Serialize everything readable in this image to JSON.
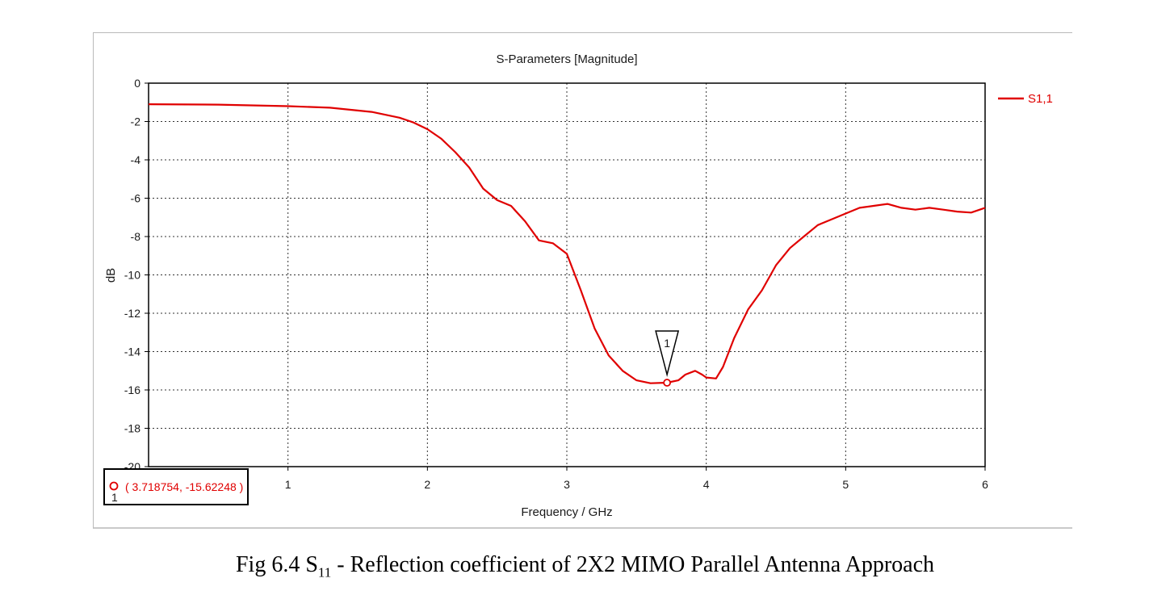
{
  "chart_data": {
    "type": "line",
    "title": "S-Parameters [Magnitude]",
    "xlabel": "Frequency / GHz",
    "ylabel": "dB",
    "xlim": [
      0,
      6
    ],
    "ylim": [
      -20,
      0
    ],
    "x_ticks": [
      1,
      2,
      3,
      4,
      5,
      6
    ],
    "y_ticks": [
      0,
      -2,
      -4,
      -6,
      -8,
      -10,
      -12,
      -14,
      -16,
      -18,
      -20
    ],
    "grid": true,
    "legend": "top-right",
    "series": [
      {
        "name": "S1,1",
        "color": "#e00000",
        "x": [
          0,
          0.5,
          1.0,
          1.3,
          1.6,
          1.8,
          1.9,
          2.0,
          2.1,
          2.2,
          2.3,
          2.4,
          2.5,
          2.6,
          2.7,
          2.8,
          2.9,
          3.0,
          3.1,
          3.2,
          3.3,
          3.4,
          3.5,
          3.6,
          3.7187,
          3.8,
          3.85,
          3.92,
          3.97,
          4.0,
          4.07,
          4.12,
          4.2,
          4.3,
          4.4,
          4.5,
          4.6,
          4.7,
          4.8,
          4.9,
          5.0,
          5.1,
          5.2,
          5.3,
          5.4,
          5.5,
          5.6,
          5.7,
          5.8,
          5.9,
          6.0
        ],
        "y": [
          -1.1,
          -1.12,
          -1.2,
          -1.28,
          -1.5,
          -1.8,
          -2.05,
          -2.4,
          -2.9,
          -3.6,
          -4.4,
          -5.5,
          -6.1,
          -6.4,
          -7.2,
          -8.2,
          -8.35,
          -8.9,
          -10.8,
          -12.8,
          -14.2,
          -15.0,
          -15.5,
          -15.65,
          -15.62,
          -15.5,
          -15.2,
          -15.0,
          -15.2,
          -15.35,
          -15.4,
          -14.8,
          -13.3,
          -11.8,
          -10.8,
          -9.5,
          -8.6,
          -8.0,
          -7.4,
          -7.1,
          -6.8,
          -6.5,
          -6.4,
          -6.3,
          -6.5,
          -6.6,
          -6.5,
          -6.6,
          -6.7,
          -6.75,
          -6.5
        ]
      }
    ],
    "marker": {
      "label": "1",
      "x": 3.718754,
      "y": -15.62248,
      "readout": "( 3.718754, -15.62248 )"
    }
  },
  "caption": {
    "prefix": "Fig 6.4 S",
    "subscript": "11",
    "suffix": " - Reflection coefficient of 2X2 MIMO Parallel Antenna Approach"
  }
}
